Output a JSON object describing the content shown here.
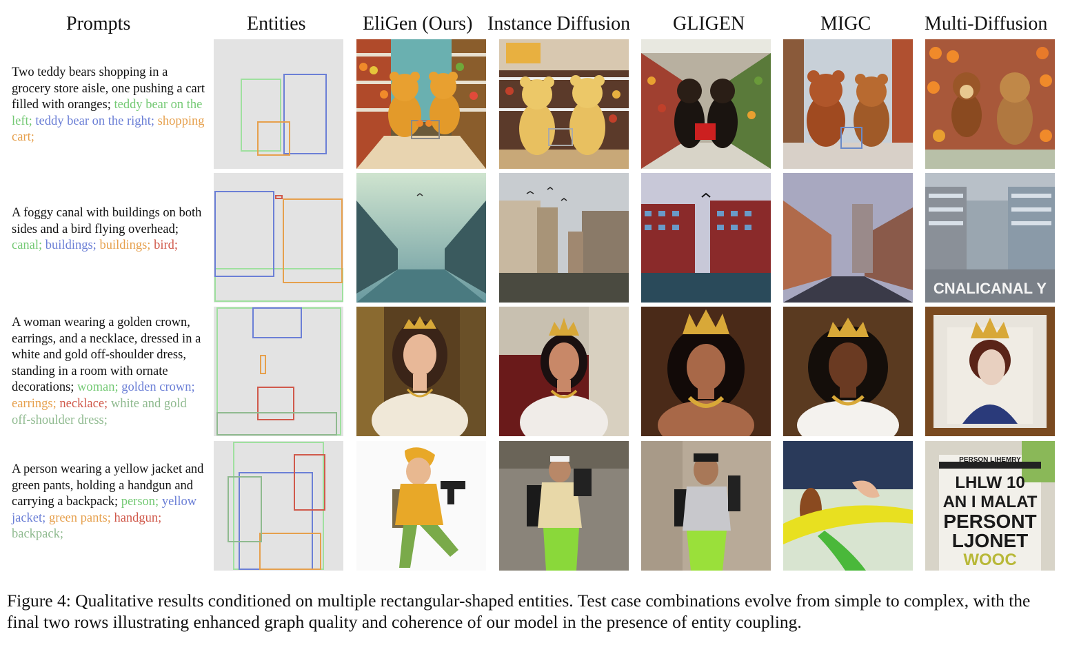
{
  "colors": {
    "green": "#74c974",
    "blue": "#6b7fd6",
    "orange": "#e6a04d",
    "red": "#d0594b",
    "sage": "#8fba8f",
    "entity_bg": "#e3e3e3"
  },
  "columns": [
    "Prompts",
    "Entities",
    "EliGen (Ours)",
    "Instance Diffusion",
    "GLIGEN",
    "MIGC",
    "Multi-Diffusion"
  ],
  "rows": [
    {
      "text": "Two teddy bears shopping in a grocery store aisle, one pushing a cart filled with oranges;",
      "entities": [
        {
          "label": "teddy bear on the left;",
          "color": "green"
        },
        {
          "label": "teddy bear on the right;",
          "color": "blue"
        },
        {
          "label": "shopping cart;",
          "color": "orange"
        }
      ],
      "scene": "grocery-teddy-bears"
    },
    {
      "text": "A foggy canal with buildings on both sides and a bird flying overhead;",
      "entities": [
        {
          "label": "canal;",
          "color": "green"
        },
        {
          "label": "buildings;",
          "color": "blue"
        },
        {
          "label": "buildings;",
          "color": "orange"
        },
        {
          "label": "bird;",
          "color": "red"
        }
      ],
      "scene": "foggy-canal",
      "multidiffusion_text": "CNALICANAL Y"
    },
    {
      "text": "A woman wearing a golden crown, earrings, and a necklace, dressed in a white and gold off-shoulder dress, standing in a room with ornate decorations;",
      "entities": [
        {
          "label": "woman;",
          "color": "green"
        },
        {
          "label": "golden crown;",
          "color": "blue"
        },
        {
          "label": "earrings;",
          "color": "orange"
        },
        {
          "label": "necklace;",
          "color": "red"
        },
        {
          "label": "white and gold off-shoulder dress;",
          "color": "sage"
        }
      ],
      "scene": "crowned-woman"
    },
    {
      "text": "A person wearing a yellow jacket and green pants, holding a handgun and carrying a backpack;",
      "entities": [
        {
          "label": "person;",
          "color": "green"
        },
        {
          "label": "yellow jacket;",
          "color": "blue"
        },
        {
          "label": "green pants;",
          "color": "orange"
        },
        {
          "label": "handgun;",
          "color": "red"
        },
        {
          "label": "backpack;",
          "color": "sage"
        }
      ],
      "scene": "person-yellow-jacket",
      "multidiffusion_text": [
        "PERSON LIHEMRY",
        "LHLW 10",
        "AN I MALAT",
        "PERSONT",
        "LJONET",
        "WOOC"
      ]
    }
  ],
  "caption": "Figure 4: Qualitative results conditioned on multiple rectangular-shaped entities. Test case combinations evolve from simple to complex, with the final two rows illustrating enhanced graph quality and coherence of our model in the presence of entity coupling."
}
